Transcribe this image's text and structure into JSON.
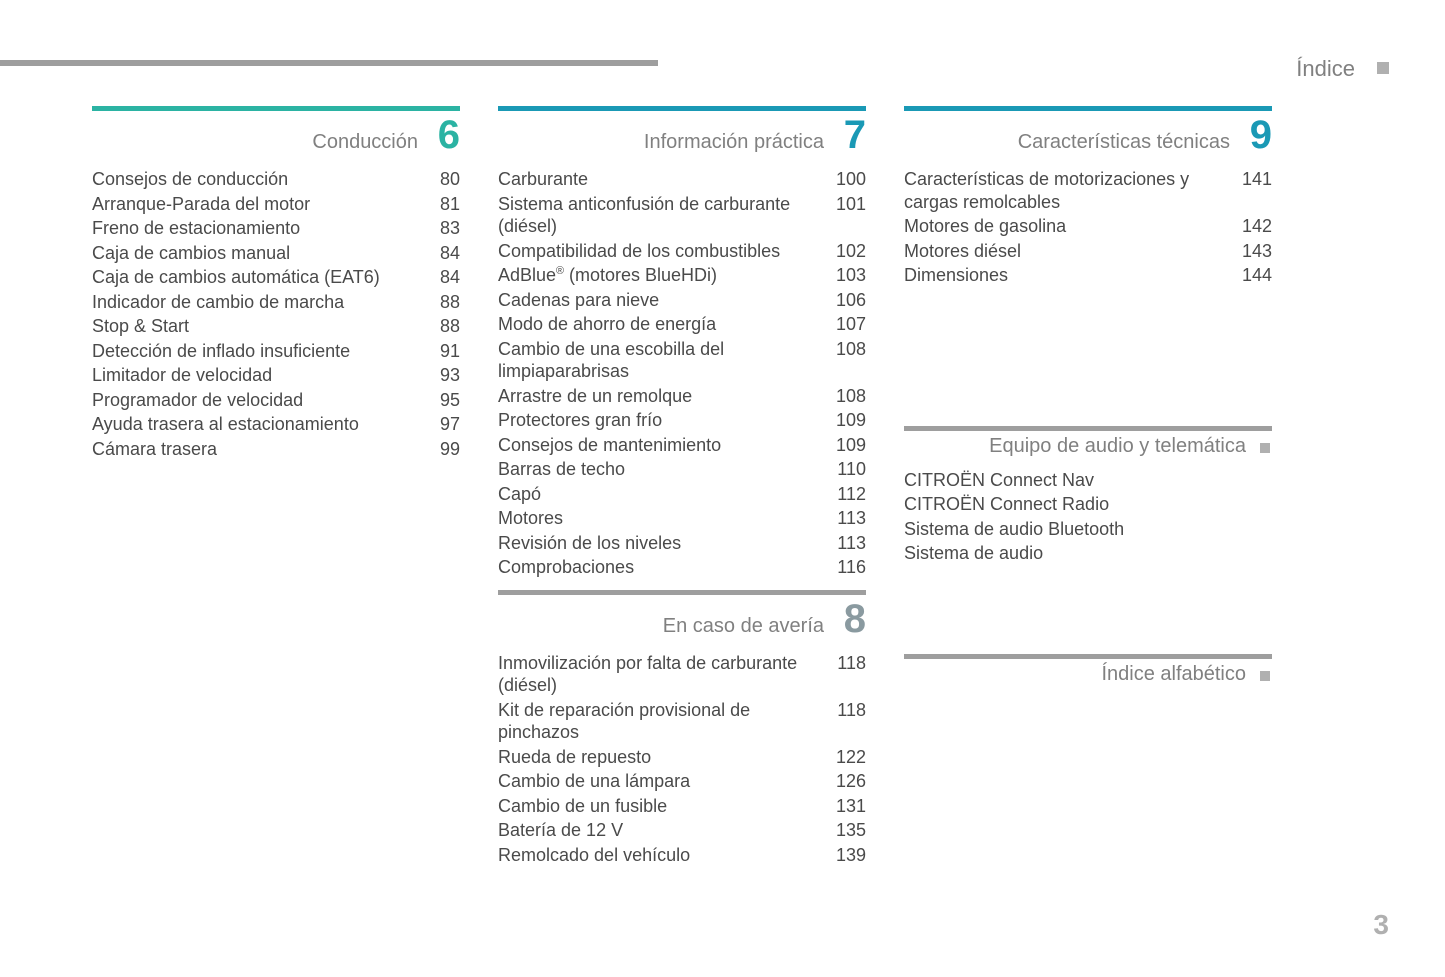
{
  "header": {
    "label": "Índice"
  },
  "page_number": "3",
  "colors": {
    "teal": "#2bb3a3",
    "blue": "#1a99b5",
    "gray_rule": "#9e9e9e",
    "gray_num": "#8a9aa0"
  },
  "sections": [
    {
      "column": 0,
      "number": "6",
      "title": "Conducción",
      "rule_color": "#2bb3a3",
      "num_color": "#2bb3a3",
      "entries": [
        {
          "label": "Consejos de conducción",
          "page": "80"
        },
        {
          "label": "Arranque-Parada del motor",
          "page": "81"
        },
        {
          "label": "Freno de estacionamiento",
          "page": "83"
        },
        {
          "label": "Caja de cambios manual",
          "page": "84"
        },
        {
          "label": "Caja de cambios automática (EAT6)",
          "page": "84"
        },
        {
          "label": "Indicador de cambio de marcha",
          "page": "88"
        },
        {
          "label": "Stop & Start",
          "page": "88"
        },
        {
          "label": "Detección de inflado insuficiente",
          "page": "91"
        },
        {
          "label": "Limitador de velocidad",
          "page": "93"
        },
        {
          "label": "Programador de velocidad",
          "page": "95"
        },
        {
          "label": "Ayuda trasera al estacionamiento",
          "page": "97"
        },
        {
          "label": "Cámara trasera",
          "page": "99"
        }
      ]
    },
    {
      "column": 1,
      "number": "7",
      "title": "Información práctica",
      "rule_color": "#1a99b5",
      "num_color": "#1a99b5",
      "entries": [
        {
          "label": "Carburante",
          "page": "100"
        },
        {
          "label": "Sistema anticonfusión de carburante (diésel)",
          "page": "101"
        },
        {
          "label": "Compatibilidad de los combustibles",
          "page": "102"
        },
        {
          "label_html": "AdBlue<sup>®</sup> (motores BlueHDi)",
          "page": "103"
        },
        {
          "label": "Cadenas para nieve",
          "page": "106"
        },
        {
          "label": "Modo de ahorro de energía",
          "page": "107"
        },
        {
          "label": "Cambio de una escobilla del limpiaparabrisas",
          "page": "108"
        },
        {
          "label": "Arrastre de un remolque",
          "page": "108"
        },
        {
          "label": "Protectores gran frío",
          "page": "109"
        },
        {
          "label": "Consejos de mantenimiento",
          "page": "109"
        },
        {
          "label": "Barras de techo",
          "page": "110"
        },
        {
          "label": "Capó",
          "page": "112"
        },
        {
          "label": "Motores",
          "page": "113"
        },
        {
          "label": "Revisión de los niveles",
          "page": "113"
        },
        {
          "label": "Comprobaciones",
          "page": "116"
        }
      ]
    },
    {
      "column": 1,
      "number": "8",
      "title": "En caso de avería",
      "rule_color": "#9e9e9e",
      "num_color": "#8a9aa0",
      "entries": [
        {
          "label": "Inmovilización por falta de carburante (diésel)",
          "page": "118"
        },
        {
          "label": "Kit de reparación provisional de pinchazos",
          "page": "118"
        },
        {
          "label": "Rueda de repuesto",
          "page": "122"
        },
        {
          "label": "Cambio de una lámpara",
          "page": "126"
        },
        {
          "label": "Cambio de un fusible",
          "page": "131"
        },
        {
          "label": "Batería de 12 V",
          "page": "135"
        },
        {
          "label": "Remolcado del vehículo",
          "page": "139"
        }
      ]
    },
    {
      "column": 2,
      "number": "9",
      "title": "Características técnicas",
      "rule_color": "#1a99b5",
      "num_color": "#1a99b5",
      "entries": [
        {
          "label": "Características de motorizaciones y cargas remolcables",
          "page": "141"
        },
        {
          "label": "Motores de gasolina",
          "page": "142"
        },
        {
          "label": "Motores diésel",
          "page": "143"
        },
        {
          "label": "Dimensiones",
          "page": "144"
        }
      ]
    }
  ],
  "sub_sections": [
    {
      "column": 2,
      "spacer": 120,
      "title": "Equipo de audio y telemática",
      "entries": [
        {
          "label": "CITROËN Connect Nav"
        },
        {
          "label": "CITROËN Connect Radio"
        },
        {
          "label": "Sistema de audio Bluetooth"
        },
        {
          "label": "Sistema de audio"
        }
      ]
    },
    {
      "column": 2,
      "spacer": 70,
      "title": "Índice alfabético",
      "entries": []
    }
  ]
}
